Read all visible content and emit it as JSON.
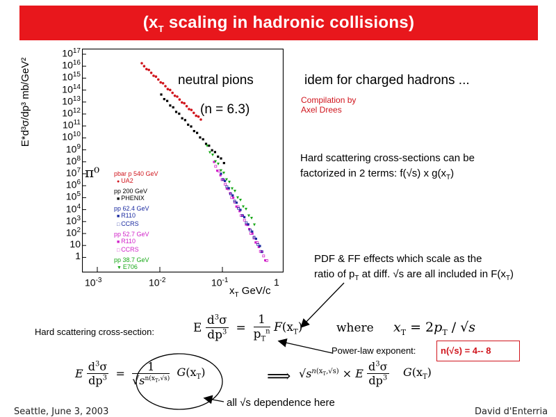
{
  "title": {
    "prefix": "(x",
    "sub": "T",
    "rest": " scaling in hadronic collisions)"
  },
  "plot": {
    "y_axis_label": "E*d³σ/dp³ mb/GeV²",
    "y_ticks": [
      {
        "base": "10",
        "exp": "17"
      },
      {
        "base": "10",
        "exp": "16"
      },
      {
        "base": "10",
        "exp": "15"
      },
      {
        "base": "10",
        "exp": "14"
      },
      {
        "base": "10",
        "exp": "13"
      },
      {
        "base": "10",
        "exp": "12"
      },
      {
        "base": "10",
        "exp": "11"
      },
      {
        "base": "10",
        "exp": "10"
      },
      {
        "base": "10",
        "exp": "9"
      },
      {
        "base": "10",
        "exp": "8"
      },
      {
        "base": "10",
        "exp": "7"
      },
      {
        "base": "10",
        "exp": "6"
      },
      {
        "base": "10",
        "exp": "5"
      },
      {
        "base": "10",
        "exp": "4"
      },
      {
        "base": "10",
        "exp": "3"
      },
      {
        "base": "10",
        "exp": "2"
      },
      {
        "base": "10",
        "exp": ""
      },
      {
        "base": "1",
        "exp": ""
      }
    ],
    "x_ticks": [
      {
        "base": "10",
        "exp": "-3"
      },
      {
        "base": "10",
        "exp": "-2"
      },
      {
        "base": "10",
        "exp": "-1"
      },
      {
        "base": "1",
        "exp": ""
      }
    ],
    "x_axis_label": {
      "x": "x",
      "sub": "T",
      "unit": " GeV/c"
    },
    "pi0_label": "π⁰",
    "legend": [
      {
        "label": "pbar p  540 GeV",
        "color": "#d0141c"
      },
      {
        "label": "UA2",
        "color": "#d0141c",
        "marker": "●"
      },
      {
        "label": "pp  200 GeV",
        "color": "#000000"
      },
      {
        "label": "PHENIX",
        "color": "#000000",
        "marker": "■"
      },
      {
        "label": "pp  62.4 GeV",
        "color": "#1a2aa0"
      },
      {
        "label": "R110",
        "color": "#1a2aa0",
        "marker": "■"
      },
      {
        "label": "CCRS",
        "color": "#1a2aa0",
        "marker": "□"
      },
      {
        "label": "pp  52.7 GeV",
        "color": "#d020c8"
      },
      {
        "label": "R110",
        "color": "#d020c8",
        "marker": "■"
      },
      {
        "label": "CCRS",
        "color": "#d020c8",
        "marker": "□"
      },
      {
        "label": "pp  38.7 GeV",
        "color": "#18a818"
      },
      {
        "label": "E706",
        "color": "#18a818",
        "marker": "▼"
      }
    ],
    "colors": {
      "ua2": "#d0141c",
      "phenix": "#000000",
      "r110_62": "#1a2aa0",
      "r110_52": "#d020c8",
      "e706": "#18a818"
    }
  },
  "text": {
    "neutral_pions": "neutral pions",
    "n_value": "(n = 6.3)",
    "idem": "idem for charged hadrons ...",
    "compilation_1": "Compilation by",
    "compilation_2": "Axel Drees",
    "hard_1": "Hard scattering cross-sections can be",
    "hard_2_a": "factorized in 2 terms: f(√s) x g(x",
    "hard_2_sub": "T",
    "hard_2_b": ")",
    "pdf_1": "PDF & FF effects which scale as the",
    "pdf_2_a": "ratio of p",
    "pdf_2_sub": "T",
    "pdf_2_b": " at diff. √s are all included in F(x",
    "pdf_2_sub2": "T",
    "pdf_2_c": ")",
    "hs_label": "Hard scattering cross-section:",
    "where": "where",
    "power_law_label": "Power-law exponent:",
    "power_law_value": "n(√s) = 4-- 8",
    "all_dep": "all √s dependence here",
    "footer_left": "Seattle, June  3, 2003",
    "footer_right": "David d'Enterria"
  }
}
